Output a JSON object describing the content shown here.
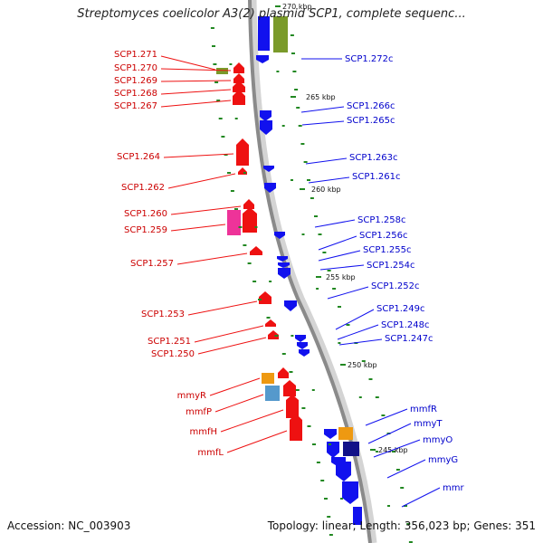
{
  "title": "Streptomyces coelicolor A3(2) plasmid SCP1, complete sequenc...",
  "footer": {
    "accession": "Accession: NC_003903",
    "stats": "Topology: linear; Length: 356,023 bp; Genes: 351"
  },
  "colors": {
    "forward": "#ee1111",
    "reverse": "#1111ee",
    "backbone": "#8a8a8a",
    "tick": "#228822",
    "feature_olive": "#7a9a2a",
    "feature_orange": "#ee9911",
    "feature_steel": "#5599cc",
    "feature_magenta": "#ee3399",
    "feature_navy": "#111188"
  },
  "kbp_markers": [
    "270 kbp",
    "265 kbp",
    "260 kbp",
    "255 kbp",
    "250 kbp",
    "245 kbp"
  ],
  "left_labels": [
    "SCP1.271",
    "SCP1.270",
    "SCP1.269",
    "SCP1.268",
    "SCP1.267",
    "SCP1.264",
    "SCP1.262",
    "SCP1.260",
    "SCP1.259",
    "SCP1.257",
    "SCP1.253",
    "SCP1.251",
    "SCP1.250",
    "mmyR",
    "mmfP",
    "mmfH",
    "mmfL"
  ],
  "right_labels": [
    "SCP1.272c",
    "SCP1.266c",
    "SCP1.265c",
    "SCP1.263c",
    "SCP1.261c",
    "SCP1.258c",
    "SCP1.256c",
    "SCP1.255c",
    "SCP1.254c",
    "SCP1.252c",
    "SCP1.249c",
    "SCP1.248c",
    "SCP1.247c",
    "mmfR",
    "mmyT",
    "mmyO",
    "mmyG",
    "mmr"
  ]
}
